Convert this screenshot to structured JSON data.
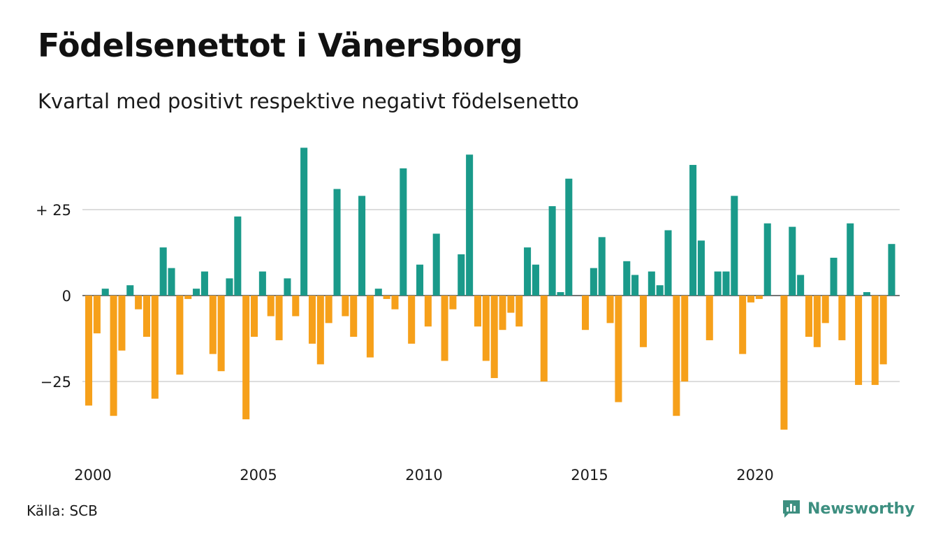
{
  "title": "Födelsenettot i Vänersborg",
  "subtitle": "Kvartal med positivt respektive negativt födelsenetto",
  "source": "Källa: SCB",
  "brand": "Newsworthy",
  "colors": {
    "positive": "#1a9a8a",
    "negative": "#f6a01a",
    "grid": "#dddddd",
    "brand": "#3d8f80"
  },
  "chart_data": {
    "type": "bar",
    "x_start": "2000 Q1",
    "x_ticks": [
      {
        "year": 2000,
        "label": "2000"
      },
      {
        "year": 2005,
        "label": "2005"
      },
      {
        "year": 2010,
        "label": "2010"
      },
      {
        "year": 2015,
        "label": "2015"
      },
      {
        "year": 2020,
        "label": "2020"
      }
    ],
    "y_ticks": [
      {
        "value": 25,
        "label": "+ 25"
      },
      {
        "value": 0,
        "label": "0"
      },
      {
        "value": -25,
        "label": "−25"
      }
    ],
    "ylim": [
      -45,
      45
    ],
    "grid": true,
    "values": [
      -32,
      -11,
      2,
      -35,
      -16,
      3,
      -4,
      -12,
      -30,
      14,
      8,
      -23,
      -1,
      2,
      7,
      -17,
      -22,
      5,
      23,
      -36,
      -12,
      7,
      -6,
      -13,
      5,
      -6,
      43,
      -14,
      -20,
      -8,
      31,
      -6,
      -12,
      29,
      -18,
      2,
      -1,
      -4,
      37,
      -14,
      9,
      -9,
      18,
      -19,
      -4,
      12,
      41,
      -9,
      -19,
      -24,
      -10,
      -5,
      -9,
      14,
      9,
      -25,
      26,
      1,
      34,
      0,
      -10,
      8,
      17,
      -8,
      -31,
      10,
      6,
      -15,
      7,
      3,
      19,
      -35,
      -25,
      38,
      16,
      -13,
      7,
      7,
      29,
      -17,
      -2,
      -1,
      21,
      0,
      -39,
      20,
      6,
      -12,
      -15,
      -8,
      11,
      -13,
      21,
      -26,
      1,
      -26,
      -20,
      15
    ]
  }
}
